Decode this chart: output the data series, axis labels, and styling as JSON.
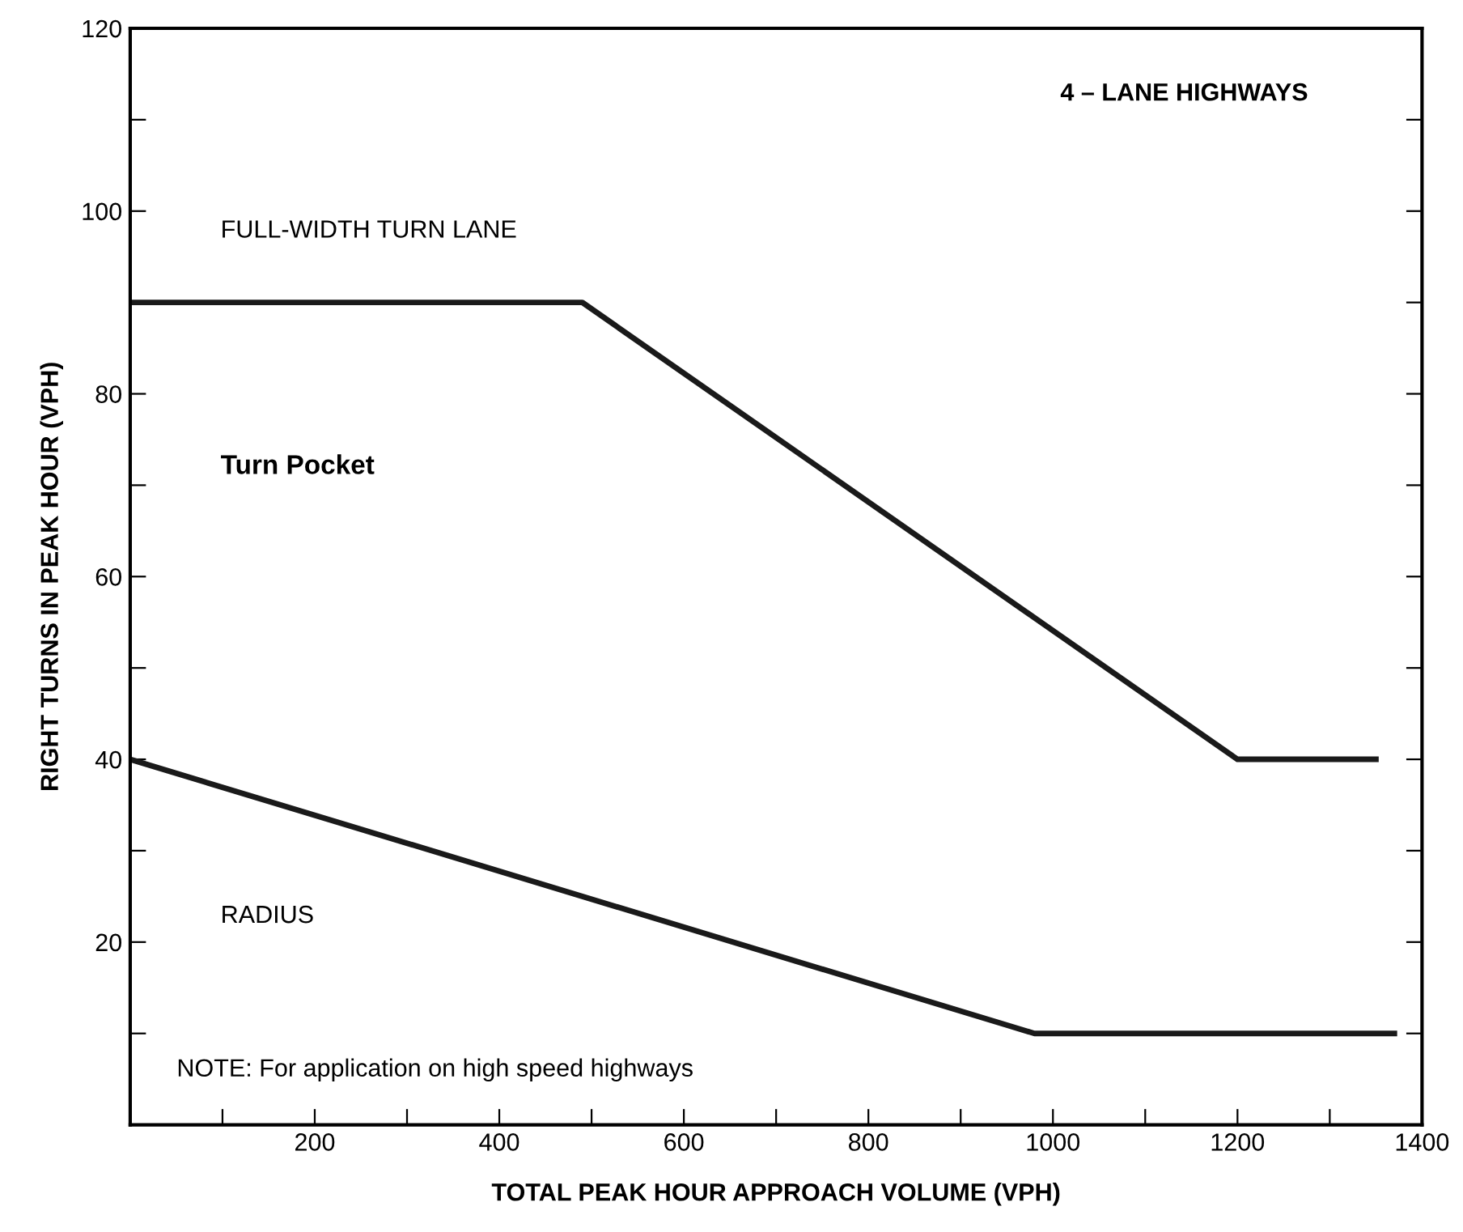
{
  "chart_data": {
    "type": "line",
    "xlabel": "TOTAL PEAK HOUR APPROACH VOLUME (VPH)",
    "ylabel": "RIGHT TURNS IN PEAK HOUR (VPH)",
    "series": [
      {
        "color": "#1a1a1a",
        "x": [
          0,
          490,
          1200,
          1350
        ],
        "values": [
          90,
          90,
          40,
          40
        ]
      },
      {
        "color": "#1a1a1a",
        "x": [
          0,
          980,
          1370
        ],
        "values": [
          40,
          10,
          10
        ]
      }
    ],
    "xlim": [
      0,
      1400
    ],
    "ylim": [
      0,
      120
    ],
    "xticks": [
      {
        "value": 100,
        "label": null
      },
      200,
      {
        "value": 300,
        "label": null
      },
      400,
      {
        "value": 500,
        "label": null
      },
      600,
      {
        "value": 700,
        "label": null
      },
      800,
      {
        "value": 900,
        "label": null
      },
      1000,
      {
        "value": 1100,
        "label": null
      },
      1200,
      {
        "value": 1300,
        "label": null
      },
      1400
    ],
    "yticks": [
      {
        "value": 10,
        "label": null
      },
      20,
      {
        "value": 30,
        "label": null
      },
      40,
      {
        "value": 50,
        "label": null
      },
      60,
      {
        "value": 70,
        "label": null
      },
      80,
      {
        "value": 90,
        "label": null
      },
      100,
      {
        "value": 110,
        "label": null
      },
      120
    ],
    "annotations": [
      "4 – LANE HIGHWAYS",
      "FULL-WIDTH TURN LANE",
      "Turn Pocket",
      "RADIUS",
      "NOTE: For application on high speed highways"
    ],
    "grid": false,
    "marker": "none",
    "line_style": "solid"
  }
}
